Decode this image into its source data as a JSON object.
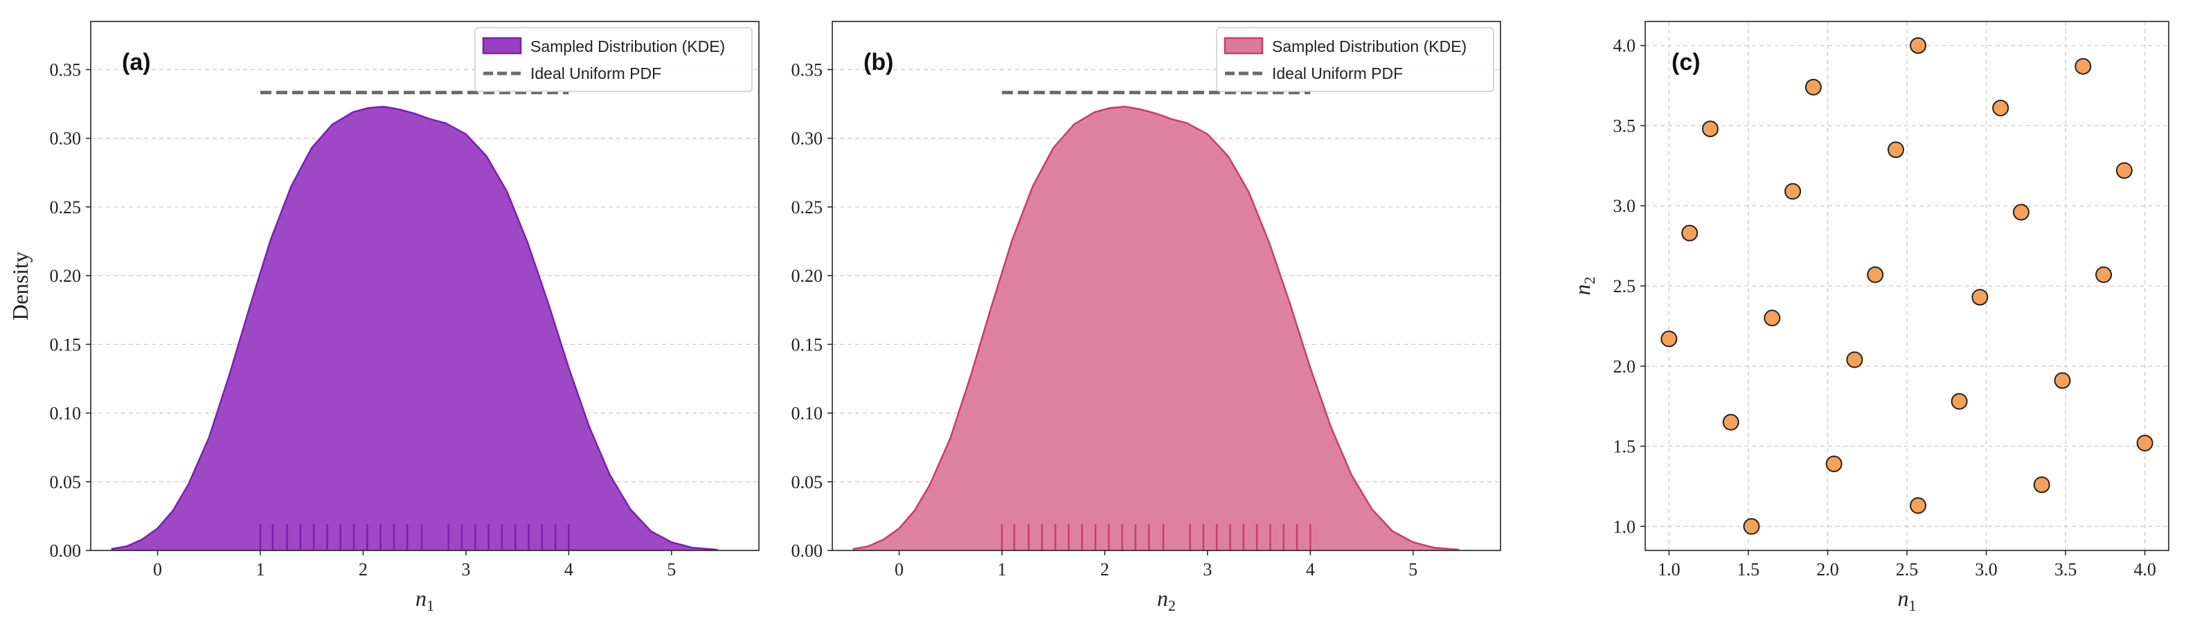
{
  "chart_data": [
    {
      "type": "area",
      "panel_label": "(a)",
      "xlabel_base": "n",
      "xlabel_sub": "1",
      "ylabel": "Density",
      "xlim": [
        -0.65,
        5.85
      ],
      "ylim": [
        0,
        0.385
      ],
      "xticks": [
        0,
        1,
        2,
        3,
        4,
        5
      ],
      "yticks": [
        0.0,
        0.05,
        0.1,
        0.15,
        0.2,
        0.25,
        0.3,
        0.35
      ],
      "grid": "y-dashed",
      "legend_position": "top-right",
      "fill_color": "#9a3ec2",
      "line_color": "#7a1fb0",
      "series": [
        {
          "name": "Sampled Distribution (KDE)",
          "x": [
            -0.45,
            -0.3,
            -0.15,
            0,
            0.15,
            0.3,
            0.5,
            0.7,
            0.9,
            1.1,
            1.3,
            1.5,
            1.7,
            1.9,
            2.05,
            2.2,
            2.35,
            2.5,
            2.65,
            2.8,
            3.0,
            3.2,
            3.4,
            3.6,
            3.8,
            4.0,
            4.2,
            4.4,
            4.6,
            4.8,
            5.0,
            5.2,
            5.45
          ],
          "y": [
            0.001,
            0.003,
            0.008,
            0.016,
            0.029,
            0.048,
            0.082,
            0.128,
            0.178,
            0.226,
            0.265,
            0.293,
            0.31,
            0.319,
            0.322,
            0.323,
            0.321,
            0.318,
            0.314,
            0.311,
            0.303,
            0.287,
            0.261,
            0.224,
            0.18,
            0.133,
            0.09,
            0.055,
            0.03,
            0.014,
            0.006,
            0.002,
            0.0005
          ]
        },
        {
          "name": "Ideal Uniform PDF",
          "x": [
            1,
            4
          ],
          "y": [
            0.3333,
            0.3333
          ]
        }
      ],
      "rug": [
        1.0,
        1.12,
        1.26,
        1.39,
        1.52,
        1.65,
        1.78,
        1.91,
        2.04,
        2.17,
        2.3,
        2.43,
        2.57,
        2.83,
        2.96,
        3.09,
        3.22,
        3.35,
        3.48,
        3.61,
        3.74,
        3.87,
        4.0
      ]
    },
    {
      "type": "area",
      "panel_label": "(b)",
      "xlabel_base": "n",
      "xlabel_sub": "2",
      "ylabel": "",
      "xlim": [
        -0.65,
        5.85
      ],
      "ylim": [
        0,
        0.385
      ],
      "xticks": [
        0,
        1,
        2,
        3,
        4,
        5
      ],
      "yticks": [
        0.0,
        0.05,
        0.1,
        0.15,
        0.2,
        0.25,
        0.3,
        0.35
      ],
      "grid": "y-dashed",
      "legend_position": "top-right",
      "fill_color": "#dc7a9b",
      "line_color": "#c83c6b",
      "series": [
        {
          "name": "Sampled Distribution (KDE)",
          "x": [
            -0.45,
            -0.3,
            -0.15,
            0,
            0.15,
            0.3,
            0.5,
            0.7,
            0.9,
            1.1,
            1.3,
            1.5,
            1.7,
            1.9,
            2.05,
            2.2,
            2.35,
            2.5,
            2.65,
            2.8,
            3.0,
            3.2,
            3.4,
            3.6,
            3.8,
            4.0,
            4.2,
            4.4,
            4.6,
            4.8,
            5.0,
            5.2,
            5.45
          ],
          "y": [
            0.001,
            0.003,
            0.008,
            0.016,
            0.029,
            0.048,
            0.082,
            0.128,
            0.178,
            0.226,
            0.265,
            0.293,
            0.31,
            0.319,
            0.322,
            0.323,
            0.321,
            0.318,
            0.314,
            0.311,
            0.303,
            0.287,
            0.261,
            0.224,
            0.18,
            0.133,
            0.09,
            0.055,
            0.03,
            0.014,
            0.006,
            0.002,
            0.0005
          ]
        },
        {
          "name": "Ideal Uniform PDF",
          "x": [
            1,
            4
          ],
          "y": [
            0.3333,
            0.3333
          ]
        }
      ],
      "rug": [
        1.0,
        1.12,
        1.26,
        1.39,
        1.52,
        1.65,
        1.78,
        1.91,
        2.04,
        2.17,
        2.3,
        2.43,
        2.57,
        2.83,
        2.96,
        3.09,
        3.22,
        3.35,
        3.48,
        3.61,
        3.74,
        3.87,
        4.0
      ]
    },
    {
      "type": "scatter",
      "panel_label": "(c)",
      "xlabel_base": "n",
      "xlabel_sub": "1",
      "ylabel_base": "n",
      "ylabel_sub": "2",
      "xlim": [
        0.85,
        4.15
      ],
      "ylim": [
        0.85,
        4.15
      ],
      "xticks": [
        1.0,
        1.5,
        2.0,
        2.5,
        3.0,
        3.5,
        4.0
      ],
      "yticks": [
        1.0,
        1.5,
        2.0,
        2.5,
        3.0,
        3.5,
        4.0
      ],
      "grid": "both-dashed",
      "point_color": "#f5a15a",
      "point_edge": "#222222",
      "x": [
        1.0,
        1.13,
        1.26,
        1.39,
        1.52,
        1.65,
        1.78,
        1.91,
        2.04,
        2.17,
        2.3,
        2.43,
        2.57,
        2.57,
        2.83,
        2.96,
        3.09,
        3.22,
        3.35,
        3.48,
        3.61,
        3.74,
        3.87,
        4.0
      ],
      "y": [
        2.17,
        2.83,
        3.48,
        1.65,
        1.0,
        2.3,
        3.09,
        3.74,
        1.39,
        2.04,
        2.57,
        3.35,
        4.0,
        1.13,
        1.78,
        2.43,
        3.61,
        2.96,
        1.26,
        1.91,
        3.87,
        2.57,
        3.22,
        1.52
      ]
    }
  ]
}
